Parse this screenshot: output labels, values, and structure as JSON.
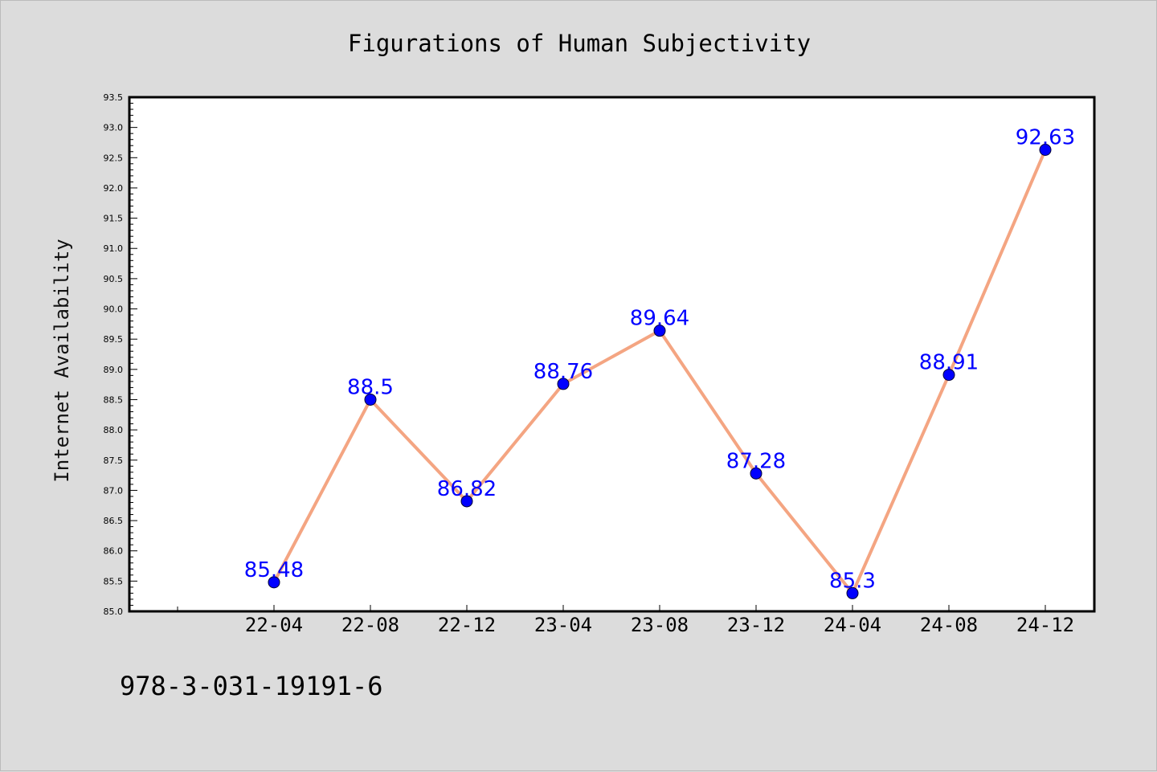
{
  "chart_data": {
    "type": "line",
    "title": "Figurations of Human Subjectivity",
    "xlabel": "",
    "ylabel": "Internet Availability",
    "categories": [
      "22-04",
      "22-08",
      "22-12",
      "23-04",
      "23-08",
      "23-12",
      "24-04",
      "24-08",
      "24-12"
    ],
    "values": [
      85.48,
      88.5,
      86.82,
      88.76,
      89.64,
      87.28,
      85.3,
      88.91,
      92.63
    ],
    "data_labels": [
      "85.48",
      "88.5",
      "86.82",
      "88.76",
      "89.64",
      "87.28",
      "85.3",
      "88.91",
      "92.63"
    ],
    "ylim": [
      85.0,
      93.5
    ],
    "yticks": [
      "85.0",
      "85.5",
      "86.0",
      "86.5",
      "87.0",
      "87.5",
      "88.0",
      "88.5",
      "89.0",
      "89.5",
      "90.0",
      "90.5",
      "91.0",
      "91.5",
      "92.0",
      "92.5",
      "93.0",
      "93.5"
    ],
    "grid": false,
    "legend": "none",
    "line_color": "#f4a582",
    "marker_color": "#0000ff",
    "label_color": "#0000ff"
  },
  "footer_text": "978-3-031-19191-6"
}
